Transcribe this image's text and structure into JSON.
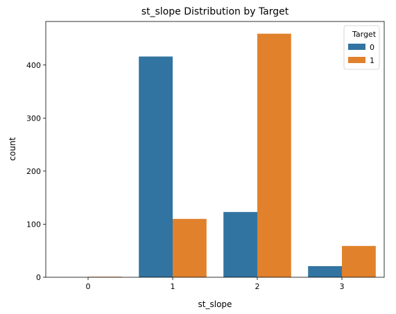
{
  "chart_data": {
    "type": "bar",
    "title": "st_slope Distribution by Target",
    "xlabel": "st_slope",
    "ylabel": "count",
    "categories": [
      "0",
      "1",
      "2",
      "3"
    ],
    "series": [
      {
        "name": "0",
        "values": [
          0,
          416,
          123,
          21
        ],
        "color": "#3274a1"
      },
      {
        "name": "1",
        "values": [
          1,
          110,
          459,
          59
        ],
        "color": "#e1812c"
      }
    ],
    "ylim": [
      0,
      482
    ],
    "yticks": [
      "0",
      "100",
      "200",
      "300",
      "400"
    ],
    "legend": {
      "title": "Target",
      "placement": "top-right"
    },
    "grid": false
  }
}
